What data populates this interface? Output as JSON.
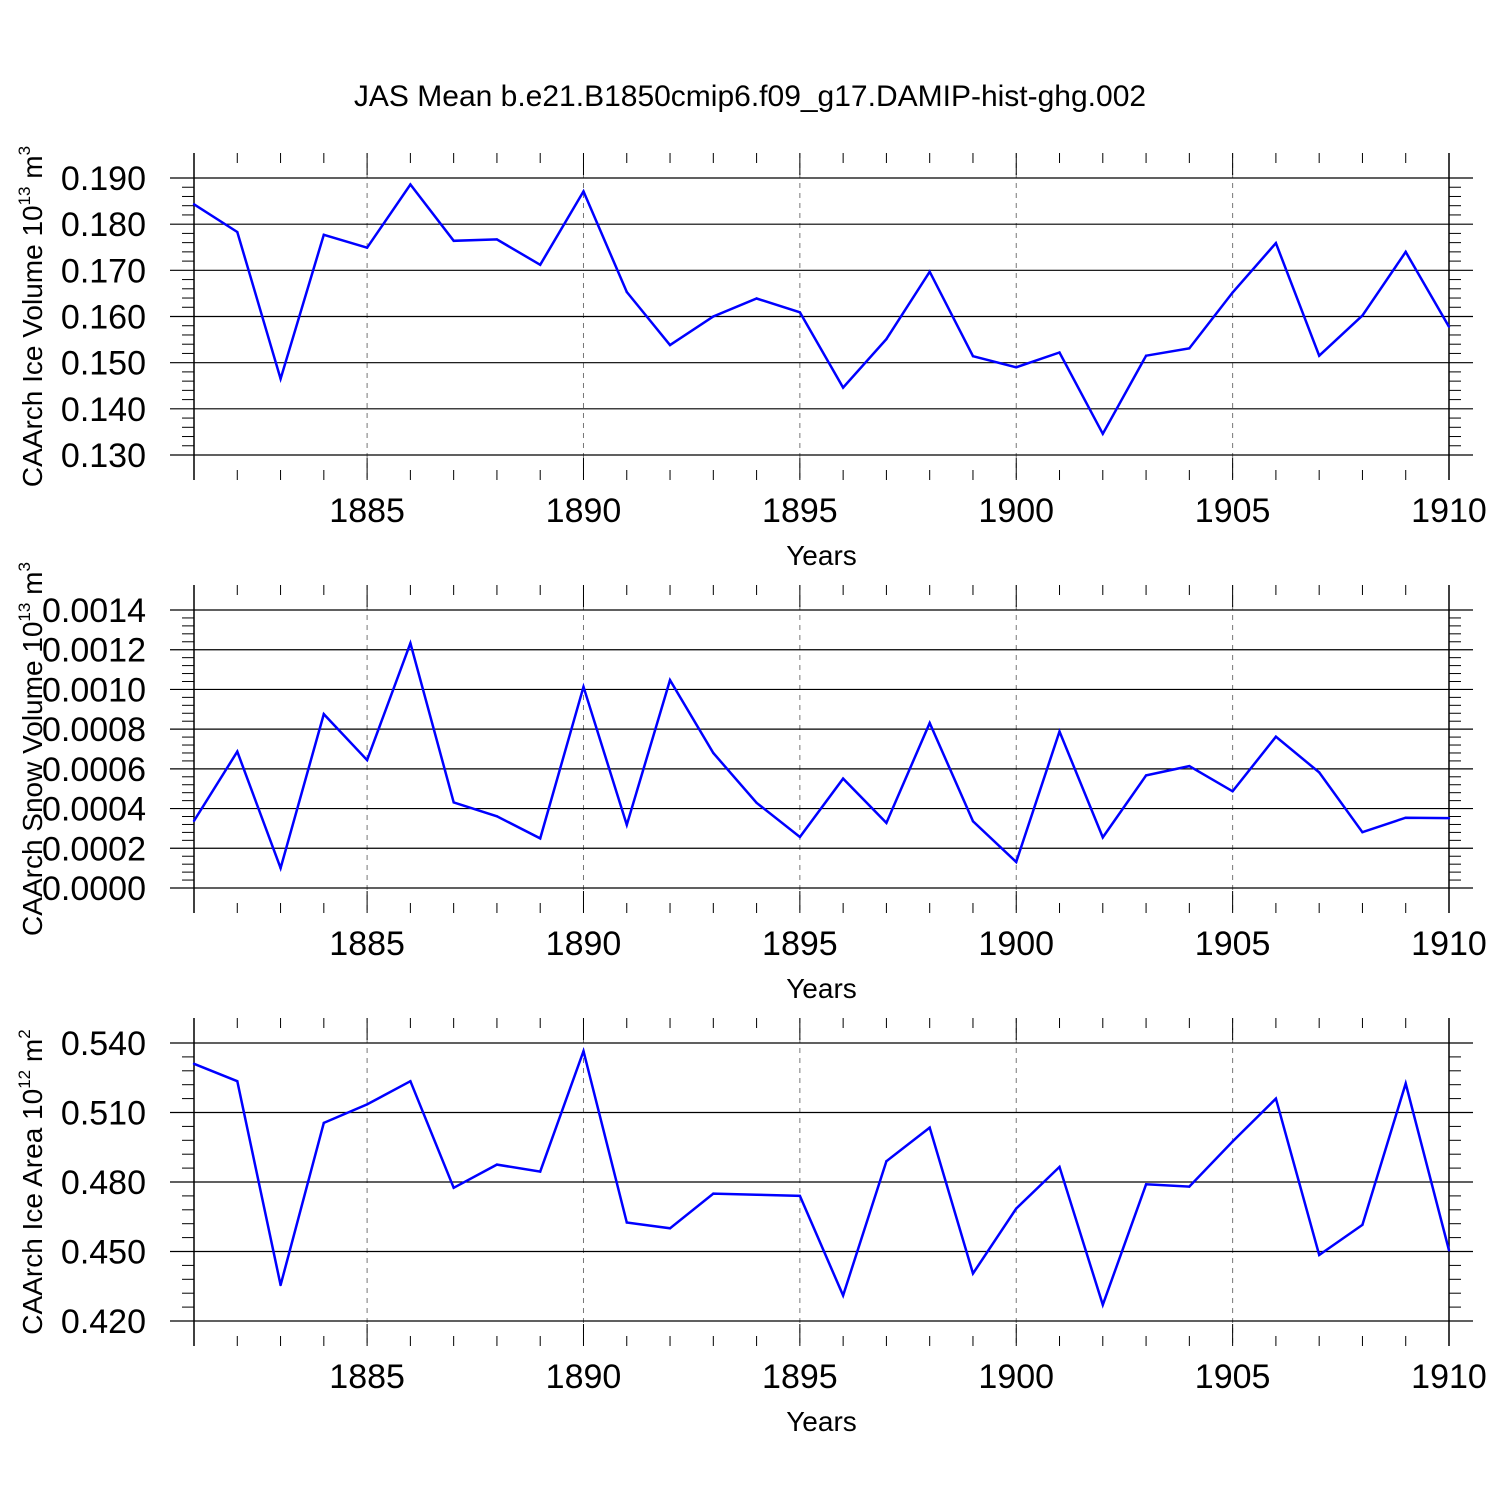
{
  "chart_data": {
    "title": "JAS Mean b.e21.B1850cmip6.f09_g17.DAMIP-hist-ghg.002",
    "type": "line",
    "series_color": "#0000ff",
    "panels": [
      {
        "type": "line",
        "ylabel": "CAArch Ice Volume 10",
        "ylabel_exp": "13",
        "ylabel_unit": " m",
        "ylabel_unit_exp": "3",
        "xlabel": "Years",
        "ylim": [
          0.13,
          0.19
        ],
        "xlim": [
          1881,
          1910
        ],
        "yticks": [
          "0.130",
          "0.140",
          "0.150",
          "0.160",
          "0.170",
          "0.180",
          "0.190"
        ],
        "xticks": [
          "1885",
          "1890",
          "1895",
          "1900",
          "1905",
          "1910"
        ],
        "x": [
          1881,
          1882,
          1883,
          1884,
          1885,
          1886,
          1887,
          1888,
          1889,
          1890,
          1891,
          1892,
          1893,
          1894,
          1895,
          1896,
          1897,
          1898,
          1899,
          1900,
          1901,
          1902,
          1903,
          1904,
          1905,
          1906,
          1907,
          1908,
          1909,
          1910
        ],
        "values": [
          0.1843,
          0.1783,
          0.1465,
          0.1777,
          0.1749,
          0.1886,
          0.1764,
          0.1767,
          0.1712,
          0.1871,
          0.1653,
          0.1538,
          0.16,
          0.1639,
          0.1609,
          0.1446,
          0.1551,
          0.1697,
          0.1514,
          0.149,
          0.1522,
          0.1346,
          0.1515,
          0.1531,
          0.1652,
          0.1759,
          0.1515,
          0.1602,
          0.174,
          0.1578
        ]
      },
      {
        "type": "line",
        "ylabel": "CAArch Snow Volume 10",
        "ylabel_exp": "13",
        "ylabel_unit": " m",
        "ylabel_unit_exp": "3",
        "xlabel": "Years",
        "ylim": [
          0.0,
          0.0014
        ],
        "xlim": [
          1881,
          1910
        ],
        "yticks": [
          "0.0000",
          "0.0002",
          "0.0004",
          "0.0006",
          "0.0008",
          "0.0010",
          "0.0012",
          "0.0014"
        ],
        "xticks": [
          "1885",
          "1890",
          "1895",
          "1900",
          "1905",
          "1910"
        ],
        "x": [
          1881,
          1882,
          1883,
          1884,
          1885,
          1886,
          1887,
          1888,
          1889,
          1890,
          1891,
          1892,
          1893,
          1894,
          1895,
          1896,
          1897,
          1898,
          1899,
          1900,
          1901,
          1902,
          1903,
          1904,
          1905,
          1906,
          1907,
          1908,
          1909,
          1910
        ],
        "values": [
          0.000338,
          0.000687,
          0.0001,
          0.000876,
          0.000644,
          0.001233,
          0.000431,
          0.000361,
          0.00025,
          0.001013,
          0.000318,
          0.001047,
          0.00068,
          0.000429,
          0.000257,
          0.000551,
          0.000328,
          0.000831,
          0.000336,
          0.000131,
          0.000788,
          0.000255,
          0.000567,
          0.000614,
          0.000487,
          0.000762,
          0.000582,
          0.000281,
          0.000354,
          0.000352
        ]
      },
      {
        "type": "line",
        "ylabel": "CAArch Ice Area 10",
        "ylabel_exp": "12",
        "ylabel_unit": " m",
        "ylabel_unit_exp": "2",
        "xlabel": "Years",
        "ylim": [
          0.42,
          0.54
        ],
        "xlim": [
          1881,
          1910
        ],
        "yticks": [
          "0.420",
          "0.450",
          "0.480",
          "0.510",
          "0.540"
        ],
        "xticks": [
          "1885",
          "1890",
          "1895",
          "1900",
          "1905",
          "1910"
        ],
        "x": [
          1881,
          1882,
          1883,
          1884,
          1885,
          1886,
          1887,
          1888,
          1889,
          1890,
          1891,
          1892,
          1893,
          1894,
          1895,
          1896,
          1897,
          1898,
          1899,
          1900,
          1901,
          1902,
          1903,
          1904,
          1905,
          1906,
          1907,
          1908,
          1909,
          1910
        ],
        "values": [
          0.531,
          0.5235,
          0.4355,
          0.5055,
          0.5135,
          0.5235,
          0.4775,
          0.4875,
          0.4845,
          0.5365,
          0.4625,
          0.46,
          0.475,
          0.4745,
          0.474,
          0.431,
          0.489,
          0.5035,
          0.4405,
          0.4685,
          0.4865,
          0.427,
          0.479,
          0.478,
          0.4975,
          0.516,
          0.4485,
          0.4615,
          0.5225,
          0.4505
        ]
      }
    ]
  }
}
